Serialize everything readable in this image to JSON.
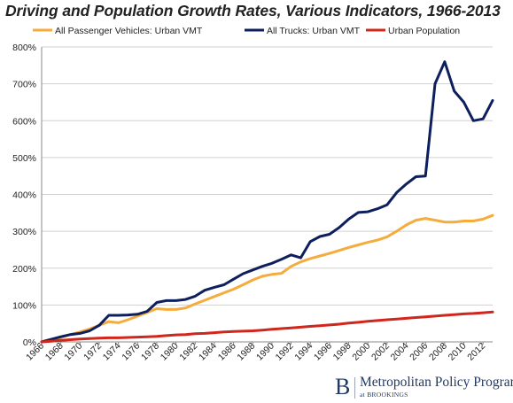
{
  "chart_data": {
    "type": "line",
    "title": "Driving and Population Growth Rates, Various Indicators, 1966-2013",
    "xlabel": "",
    "ylabel": "",
    "ylim": [
      0,
      800
    ],
    "yticks": [
      "0%",
      "100%",
      "200%",
      "300%",
      "400%",
      "500%",
      "600%",
      "700%",
      "800%"
    ],
    "xlim": [
      1966,
      2013
    ],
    "xticks": [
      "1966",
      "1968",
      "1970",
      "1972",
      "1974",
      "1976",
      "1978",
      "1980",
      "1982",
      "1984",
      "1986",
      "1988",
      "1990",
      "1992",
      "1994",
      "1996",
      "1998",
      "2000",
      "2002",
      "2004",
      "2006",
      "2008",
      "2010",
      "2012"
    ],
    "grid": "horizontal",
    "legend_position": "top",
    "x": [
      1966,
      1967,
      1968,
      1969,
      1970,
      1971,
      1972,
      1973,
      1974,
      1975,
      1976,
      1977,
      1978,
      1979,
      1980,
      1981,
      1982,
      1983,
      1984,
      1985,
      1986,
      1987,
      1988,
      1989,
      1990,
      1991,
      1992,
      1993,
      1994,
      1995,
      1996,
      1997,
      1998,
      1999,
      2000,
      2001,
      2002,
      2003,
      2004,
      2005,
      2006,
      2007,
      2008,
      2009,
      2010,
      2011,
      2012,
      2013
    ],
    "series": [
      {
        "name": "All Passenger Vehicles: Urban VMT",
        "color": "#f4ac3c",
        "values": [
          0,
          5,
          12,
          20,
          27,
          35,
          45,
          55,
          52,
          60,
          70,
          80,
          90,
          88,
          88,
          92,
          103,
          113,
          123,
          133,
          143,
          155,
          168,
          178,
          183,
          186,
          205,
          217,
          226,
          233,
          240,
          248,
          256,
          263,
          270,
          276,
          285,
          300,
          317,
          330,
          335,
          330,
          325,
          325,
          328,
          328,
          333,
          343
        ]
      },
      {
        "name": "All Trucks: Urban VMT",
        "color": "#0d1f5c",
        "values": [
          0,
          7,
          14,
          20,
          23,
          30,
          45,
          72,
          72,
          73,
          75,
          83,
          107,
          112,
          112,
          115,
          124,
          140,
          148,
          155,
          170,
          185,
          195,
          205,
          213,
          224,
          236,
          228,
          272,
          286,
          292,
          310,
          333,
          351,
          353,
          361,
          372,
          405,
          428,
          448,
          450,
          700,
          760,
          680,
          650,
          600,
          605,
          655
        ]
      },
      {
        "name": "Urban Population",
        "color": "#d0271d",
        "values": [
          0,
          2,
          4,
          6,
          8,
          9,
          10,
          11,
          11,
          12,
          13,
          14,
          15,
          17,
          19,
          20,
          22,
          23,
          25,
          27,
          28,
          29,
          30,
          32,
          34,
          36,
          38,
          40,
          42,
          44,
          46,
          48,
          51,
          53,
          56,
          58,
          60,
          62,
          64,
          66,
          68,
          70,
          72,
          74,
          76,
          77,
          79,
          81
        ]
      }
    ]
  },
  "brand": {
    "logo_letter": "B",
    "name": "Metropolitan Policy Program",
    "sub_at": "at",
    "sub_org": "BROOKINGS"
  }
}
